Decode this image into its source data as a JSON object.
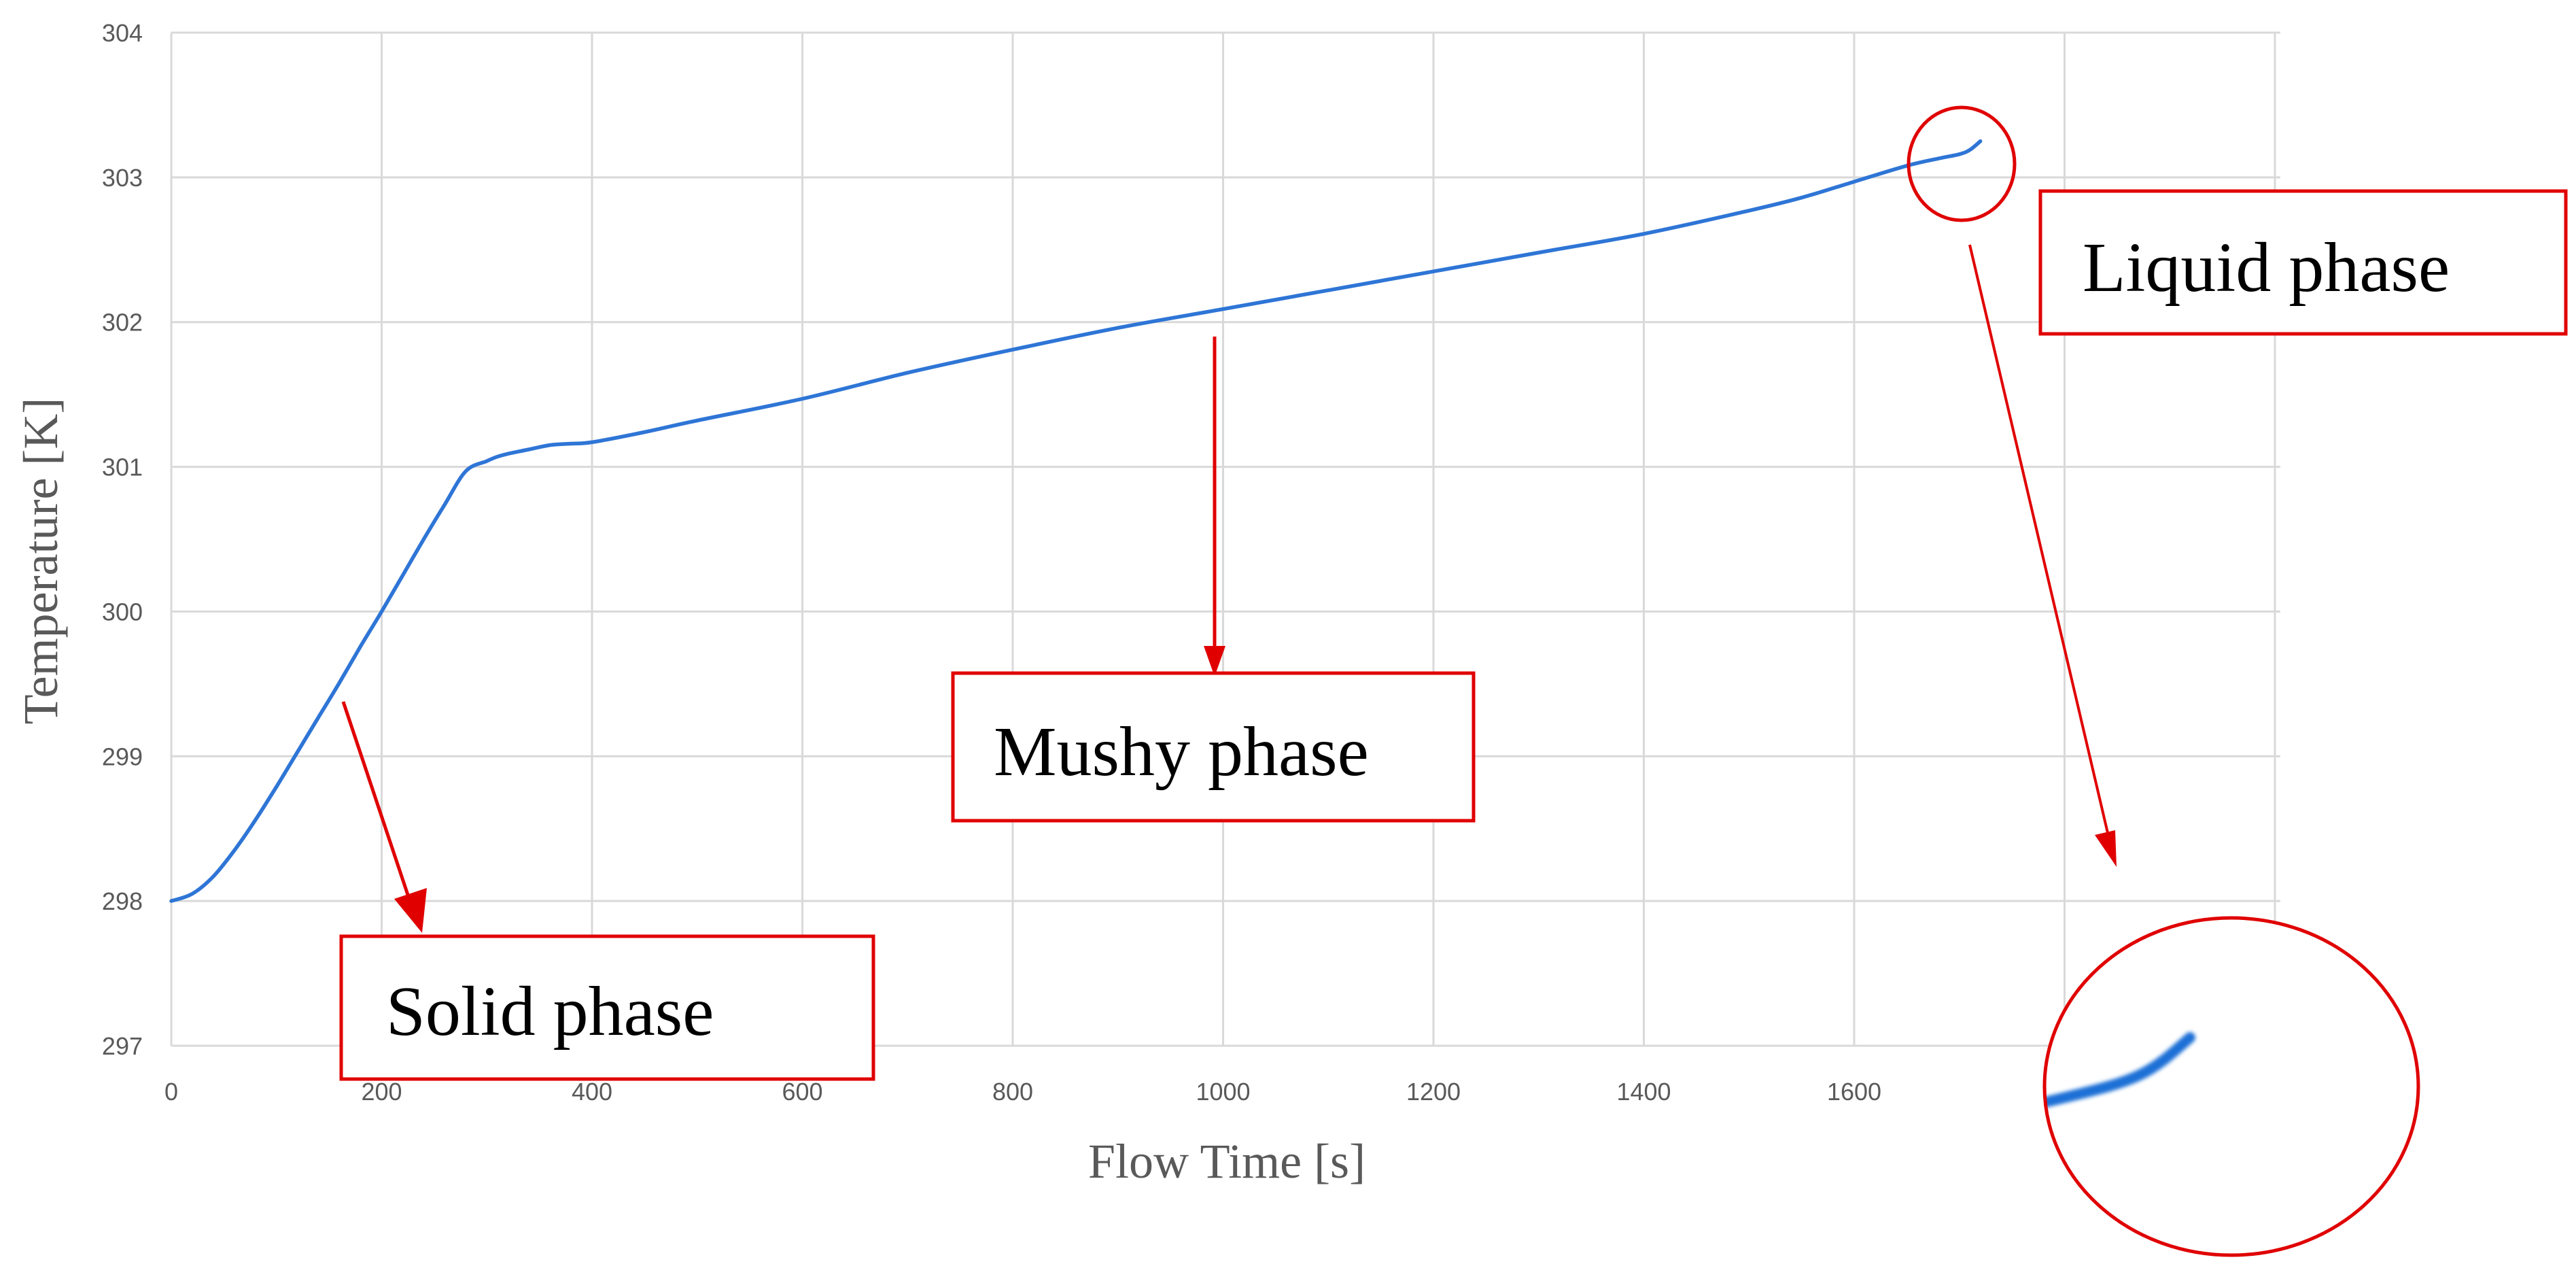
{
  "chart_data": {
    "type": "line",
    "title": "",
    "xlabel": "Flow Time [s]",
    "ylabel": "Temperature [K]",
    "xlim": [
      0,
      2000
    ],
    "ylim": [
      297,
      304
    ],
    "x_ticks": [
      "0",
      "200",
      "400",
      "600",
      "800",
      "1000",
      "1200",
      "1400",
      "1600"
    ],
    "y_ticks": [
      "297",
      "298",
      "299",
      "300",
      "301",
      "302",
      "303",
      "304"
    ],
    "grid": true,
    "legend": "none",
    "series": [
      {
        "color": "#2E75D6",
        "x": [
          0,
          20,
          40,
          60,
          80,
          100,
          120,
          140,
          160,
          180,
          200,
          220,
          240,
          260,
          280,
          300,
          310,
          320,
          340,
          360,
          380,
          400,
          450,
          500,
          600,
          700,
          800,
          900,
          1000,
          1100,
          1200,
          1300,
          1400,
          1500,
          1550,
          1600,
          1650,
          1680,
          1700,
          1710,
          1720
        ],
        "y": [
          298.0,
          298.05,
          298.17,
          298.35,
          298.56,
          298.79,
          299.03,
          299.27,
          299.51,
          299.76,
          300.0,
          300.25,
          300.5,
          300.74,
          300.97,
          301.04,
          301.07,
          301.09,
          301.12,
          301.15,
          301.16,
          301.17,
          301.24,
          301.32,
          301.47,
          301.65,
          301.81,
          301.96,
          302.09,
          302.22,
          302.35,
          302.48,
          302.61,
          302.77,
          302.86,
          302.97,
          303.08,
          303.13,
          303.16,
          303.19,
          303.25
        ]
      }
    ],
    "annotations": [
      {
        "text": "Solid phase",
        "point_x": 160,
        "point_y": 299.4
      },
      {
        "text": "Mushy phase",
        "point_x": 990,
        "point_y": 302.0
      },
      {
        "text": "Liquid phase",
        "point_x": 1710,
        "point_y": 303.1
      }
    ]
  },
  "colors": {
    "line": "#2E75D6",
    "annotation": "#E00000",
    "grid": "#D9D9D9",
    "tick_text": "#595959"
  }
}
